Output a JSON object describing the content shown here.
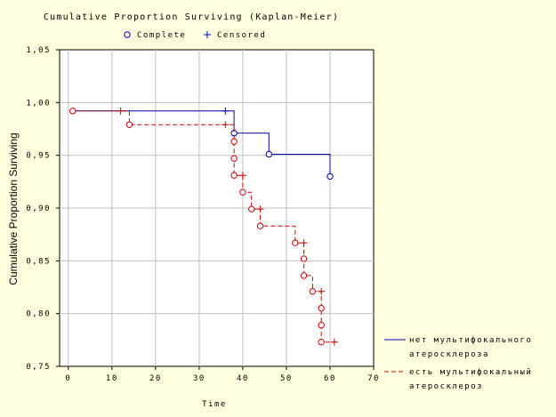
{
  "chart_data": {
    "type": "line",
    "title": "Cumulative Proportion Surviving (Kaplan-Meier)",
    "xlabel": "Time",
    "ylabel": "Cumulative Proportion Surviving",
    "xlim": [
      -2,
      70
    ],
    "ylim": [
      0.75,
      1.05
    ],
    "x_ticks": [
      "0",
      "10",
      "20",
      "30",
      "40",
      "50",
      "60",
      "70"
    ],
    "y_ticks": [
      "0,75",
      "0,80",
      "0,85",
      "0,90",
      "0,95",
      "1,00",
      "1,05"
    ],
    "grid": true,
    "top_legend": {
      "complete_label": "Complete",
      "censored_label": "Censored"
    },
    "series": [
      {
        "name_line1": "нет мультифокального",
        "name_line2": "атеросклероза",
        "color": "#0000aa",
        "line_style": "solid",
        "steps": [
          [
            1,
            0.992
          ],
          [
            38,
            0.992
          ],
          [
            38,
            0.971
          ],
          [
            46,
            0.971
          ],
          [
            46,
            0.951
          ],
          [
            60,
            0.951
          ],
          [
            60,
            0.93
          ]
        ],
        "complete_points": [
          [
            38,
            0.971
          ],
          [
            46,
            0.951
          ],
          [
            60,
            0.93
          ]
        ],
        "censored_points": [
          [
            36,
            0.992
          ]
        ]
      },
      {
        "name_line1": "есть мультифокальный",
        "name_line2": "атеросклероз",
        "color": "#cc0000",
        "line_style": "dashed",
        "steps": [
          [
            1,
            0.992
          ],
          [
            14,
            0.992
          ],
          [
            14,
            0.979
          ],
          [
            38,
            0.979
          ],
          [
            38,
            0.963
          ],
          [
            38,
            0.947
          ],
          [
            38,
            0.931
          ],
          [
            40,
            0.931
          ],
          [
            40,
            0.915
          ],
          [
            42,
            0.915
          ],
          [
            42,
            0.899
          ],
          [
            44,
            0.899
          ],
          [
            44,
            0.883
          ],
          [
            52,
            0.883
          ],
          [
            52,
            0.867
          ],
          [
            54,
            0.867
          ],
          [
            54,
            0.852
          ],
          [
            54,
            0.836
          ],
          [
            56,
            0.836
          ],
          [
            56,
            0.821
          ],
          [
            58,
            0.821
          ],
          [
            58,
            0.805
          ],
          [
            58,
            0.789
          ],
          [
            58,
            0.773
          ],
          [
            61,
            0.773
          ]
        ],
        "complete_points": [
          [
            1,
            0.992
          ],
          [
            14,
            0.979
          ],
          [
            38,
            0.963
          ],
          [
            38,
            0.947
          ],
          [
            38,
            0.931
          ],
          [
            40,
            0.915
          ],
          [
            42,
            0.899
          ],
          [
            44,
            0.883
          ],
          [
            52,
            0.867
          ],
          [
            54,
            0.852
          ],
          [
            54,
            0.836
          ],
          [
            56,
            0.821
          ],
          [
            58,
            0.805
          ],
          [
            58,
            0.789
          ],
          [
            58,
            0.773
          ]
        ],
        "censored_points": [
          [
            12,
            0.992
          ],
          [
            36,
            0.979
          ],
          [
            40,
            0.931
          ],
          [
            44,
            0.899
          ],
          [
            54,
            0.867
          ],
          [
            58,
            0.821
          ],
          [
            61,
            0.773
          ]
        ]
      }
    ]
  }
}
